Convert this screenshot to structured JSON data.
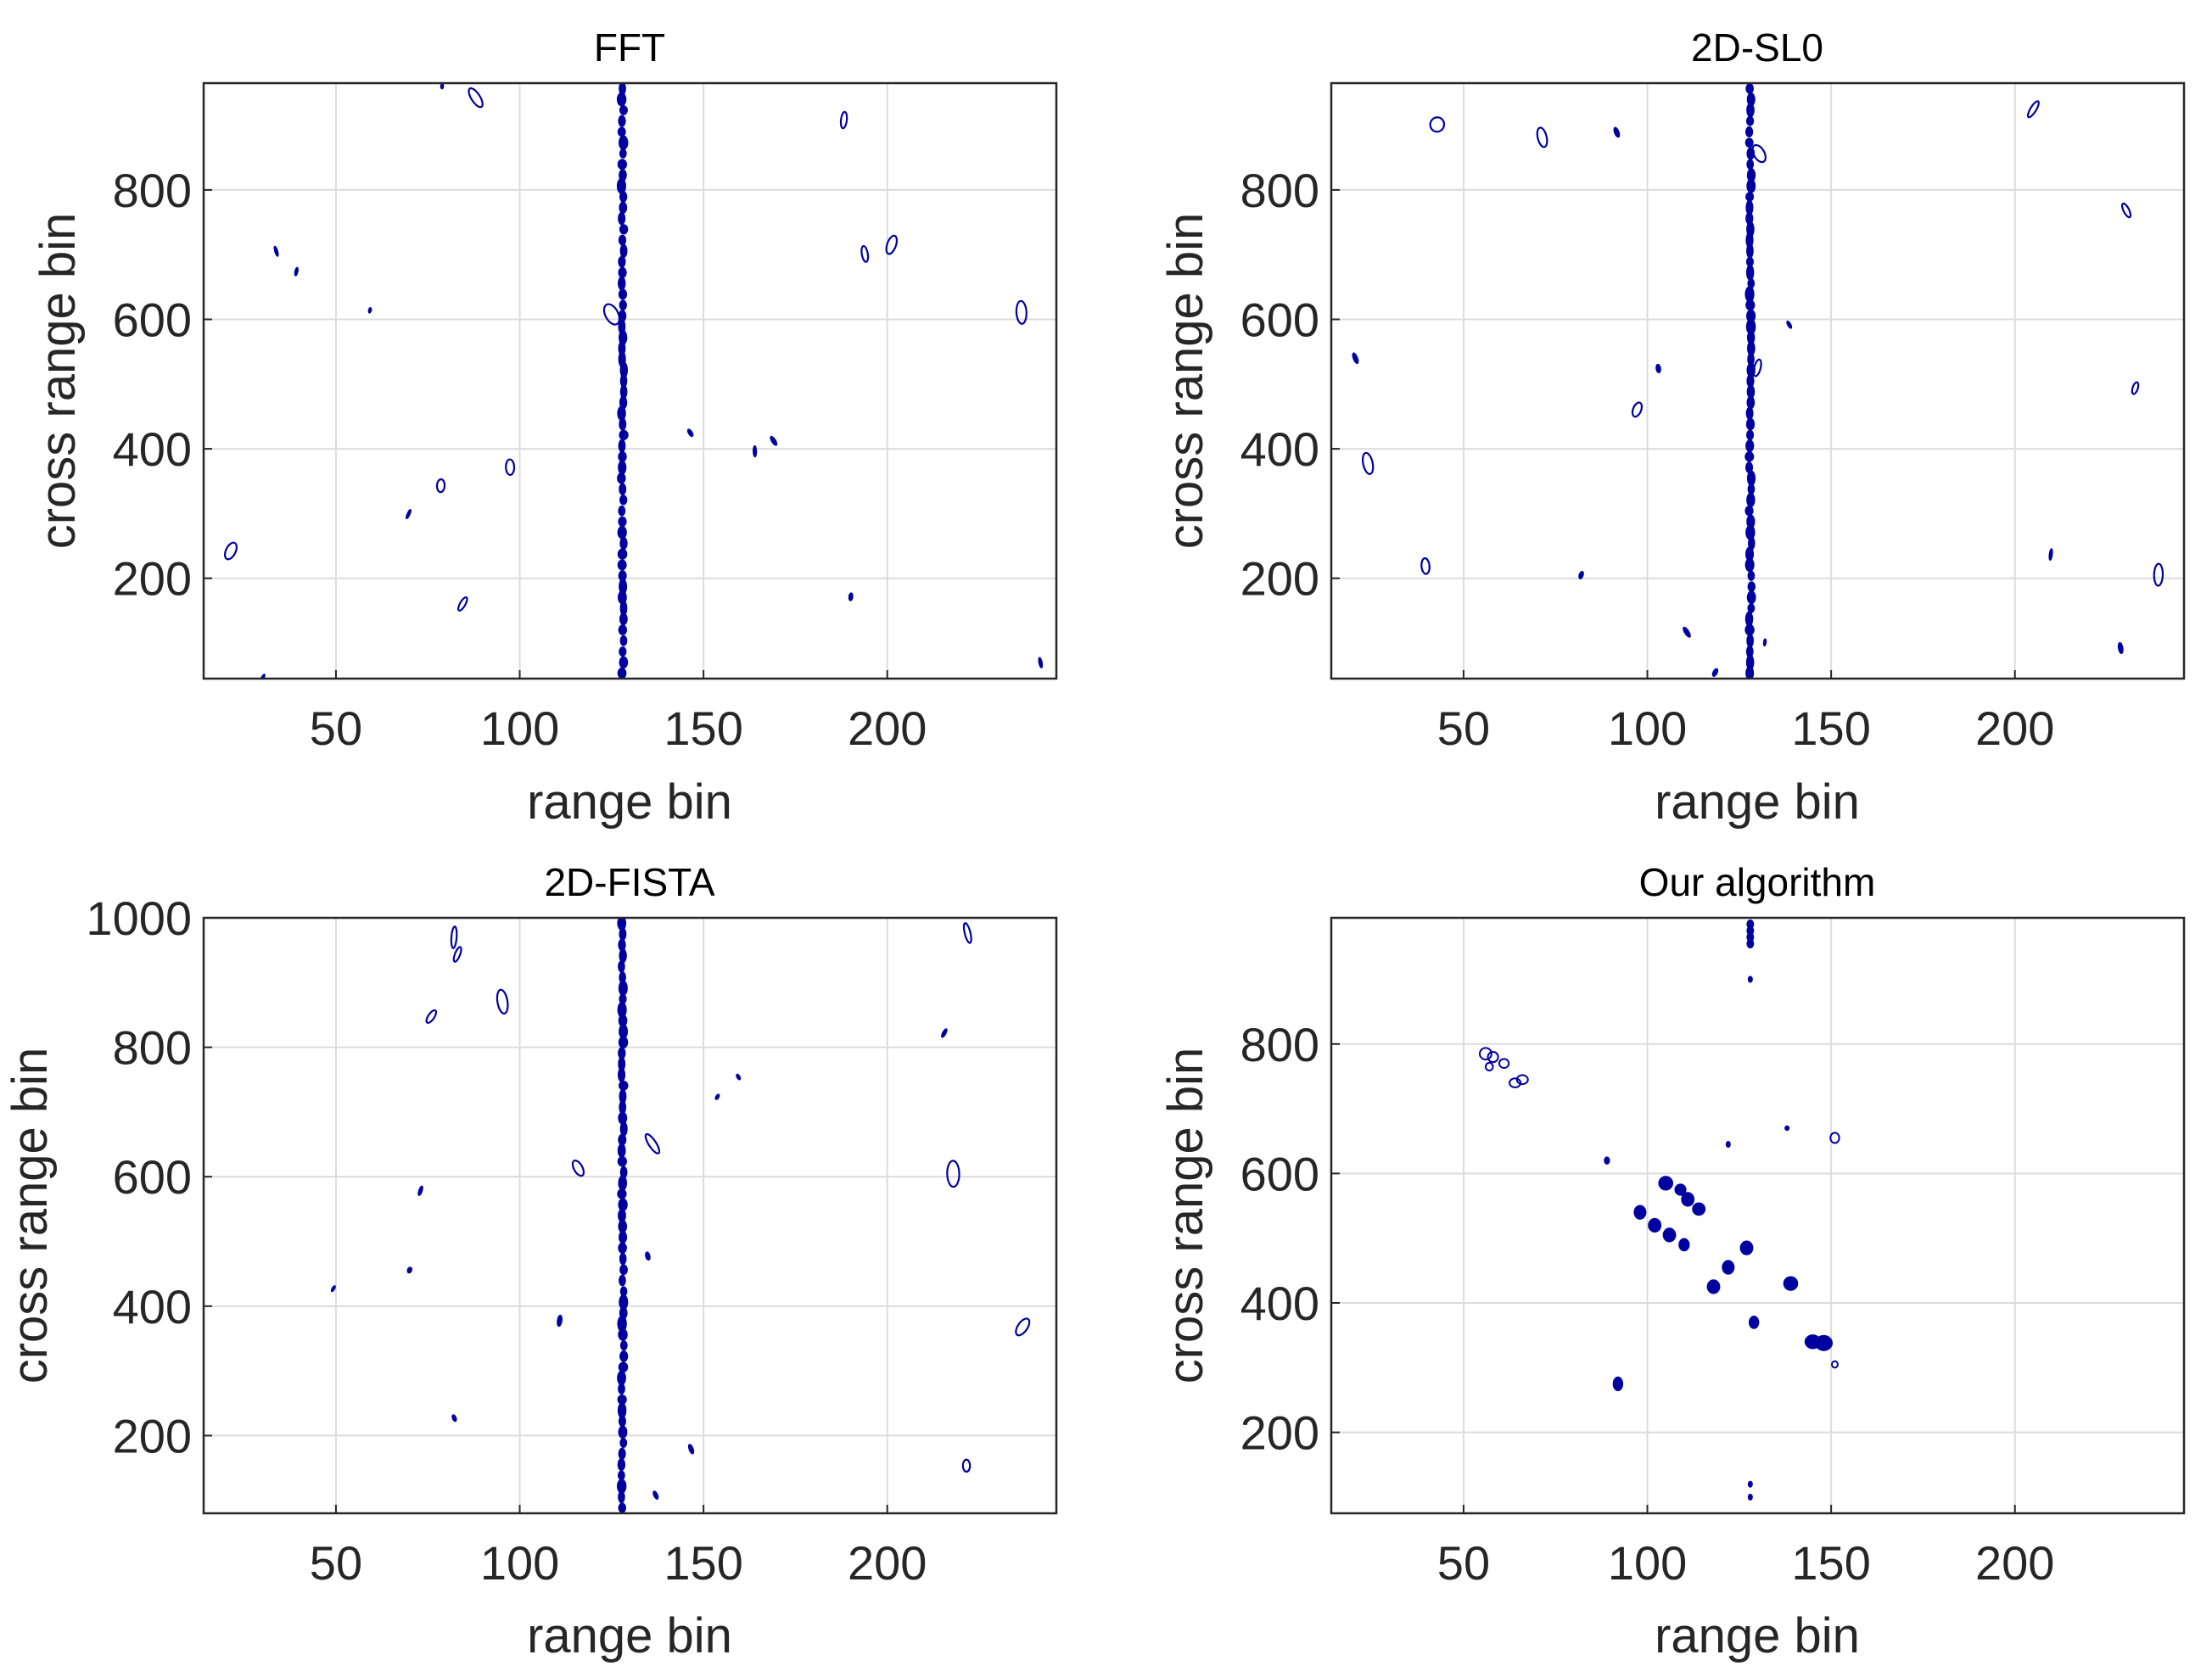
{
  "figure": {
    "description_free": true
  },
  "chart_data": [
    {
      "type": "scatter",
      "id": "fft",
      "title": "FFT",
      "xlabel": "range bin",
      "ylabel": "cross range bin",
      "xlim": [
        14,
        246
      ],
      "ylim": [
        45,
        965
      ],
      "xticks": [
        50,
        100,
        150,
        200
      ],
      "yticks": [
        200,
        400,
        600,
        800
      ],
      "grid": true,
      "color": "#0000a0",
      "series": [
        {
          "name": "speckle contours",
          "density_per_1000_area": 0.022,
          "seed": 11
        },
        {
          "name": "column at range bin 128",
          "x": 128,
          "y_from": 45,
          "y_to": 965,
          "blob_count": 55
        }
      ]
    },
    {
      "type": "scatter",
      "id": "sl0",
      "title": "2D-SL0",
      "xlabel": "range bin",
      "ylabel": "cross range bin",
      "xlim": [
        14,
        246
      ],
      "ylim": [
        45,
        965
      ],
      "xticks": [
        50,
        100,
        150,
        200
      ],
      "yticks": [
        200,
        400,
        600,
        800
      ],
      "grid": true,
      "color": "#0000a0",
      "series": [
        {
          "name": "speckle contours",
          "density_per_1000_area": 0.022,
          "seed": 29
        },
        {
          "name": "column at range bin 128",
          "x": 128,
          "y_from": 45,
          "y_to": 965,
          "blob_count": 55
        }
      ]
    },
    {
      "type": "scatter",
      "id": "fista",
      "title": "2D-FISTA",
      "xlabel": "range bin",
      "ylabel": "cross range bin",
      "xlim": [
        14,
        246
      ],
      "ylim": [
        80,
        1000
      ],
      "xticks": [
        50,
        100,
        150,
        200
      ],
      "yticks": [
        200,
        400,
        600,
        800,
        1000
      ],
      "grid": true,
      "color": "#0000a0",
      "series": [
        {
          "name": "speckle contours",
          "density_per_1000_area": 0.022,
          "seed": 47
        },
        {
          "name": "column at range bin 128",
          "x": 128,
          "y_from": 80,
          "y_to": 1000,
          "blob_count": 55
        }
      ]
    },
    {
      "type": "scatter",
      "id": "ours",
      "title": "Our algorithm",
      "xlabel": "range bin",
      "ylabel": "cross range bin",
      "xlim": [
        14,
        246
      ],
      "ylim": [
        75,
        995
      ],
      "xticks": [
        50,
        100,
        150,
        200
      ],
      "yticks": [
        200,
        400,
        600,
        800
      ],
      "grid": true,
      "color": "#0000a0",
      "series": [
        {
          "name": "scatterers",
          "points": [
            [
              56,
              785,
              1.6,
              9,
              false
            ],
            [
              58,
              780,
              1.4,
              8,
              false
            ],
            [
              57,
              765,
              1.0,
              6,
              false
            ],
            [
              61,
              770,
              1.3,
              7,
              false
            ],
            [
              64,
              740,
              1.5,
              7,
              false
            ],
            [
              66,
              745,
              1.5,
              7,
              false
            ],
            [
              128,
              985,
              0.8,
              6,
              true
            ],
            [
              128,
              975,
              0.8,
              6,
              true
            ],
            [
              128,
              965,
              0.8,
              6,
              true
            ],
            [
              128,
              955,
              0.8,
              6,
              true
            ],
            [
              128,
              900,
              0.4,
              4,
              true
            ],
            [
              128,
              120,
              0.4,
              4,
              true
            ],
            [
              128,
              100,
              0.4,
              4,
              true
            ],
            [
              89,
              620,
              0.6,
              5,
              true
            ],
            [
              105,
              585,
              1.8,
              10,
              true
            ],
            [
              109,
              575,
              1.4,
              8,
              true
            ],
            [
              111,
              560,
              1.6,
              10,
              true
            ],
            [
              114,
              545,
              1.6,
              9,
              true
            ],
            [
              98,
              540,
              1.5,
              10,
              true
            ],
            [
              102,
              520,
              1.6,
              10,
              true
            ],
            [
              106,
              505,
              1.6,
              10,
              true
            ],
            [
              110,
              490,
              1.3,
              9,
              true
            ],
            [
              127,
              485,
              1.6,
              10,
              true
            ],
            [
              122,
              455,
              1.5,
              10,
              true
            ],
            [
              118,
              425,
              1.6,
              10,
              true
            ],
            [
              139,
              430,
              1.8,
              10,
              true
            ],
            [
              129,
              370,
              1.2,
              9,
              true
            ],
            [
              145,
              340,
              2.0,
              10,
              true
            ],
            [
              148,
              338,
              2.2,
              11,
              true
            ],
            [
              151,
              305,
              0.8,
              5,
              false
            ],
            [
              92,
              275,
              1.2,
              10,
              true
            ],
            [
              151,
              655,
              1.2,
              8,
              false
            ],
            [
              122,
              645,
              0.4,
              4,
              true
            ],
            [
              138,
              670,
              0.3,
              3,
              true
            ]
          ]
        }
      ]
    }
  ]
}
